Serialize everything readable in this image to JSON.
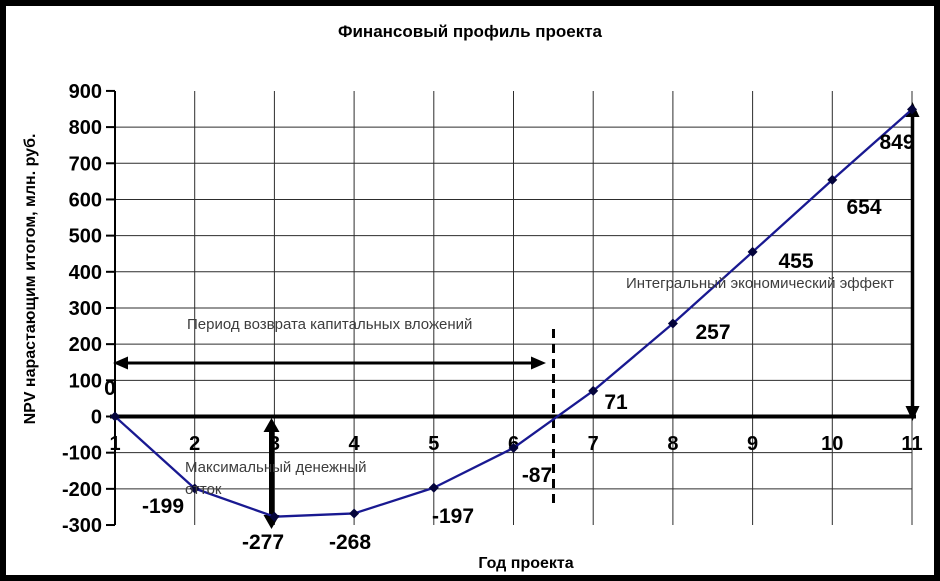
{
  "chart_data": {
    "type": "line",
    "title": "Финансовый профиль проекта",
    "xlabel": "Год проекта",
    "ylabel": "NPV нарастающим итогом, млн. руб.",
    "x": [
      1,
      2,
      3,
      4,
      5,
      6,
      7,
      8,
      9,
      10,
      11
    ],
    "values": [
      0,
      -199,
      -277,
      -268,
      -197,
      -87,
      71,
      257,
      455,
      654,
      849
    ],
    "data_labels": [
      "0",
      "-199",
      "-277",
      "-268",
      "-197",
      "-87",
      "71",
      "257",
      "455",
      "654",
      "849"
    ],
    "y_ticks": [
      900,
      800,
      700,
      600,
      500,
      400,
      300,
      200,
      100,
      0,
      -100,
      -200,
      -300
    ],
    "ylim": [
      -300,
      900
    ],
    "xlim": [
      1,
      11
    ],
    "ytick_step": 100,
    "grid": true,
    "legend": false,
    "line_color": "#191991",
    "marker_color": "#04043a",
    "marker": "diamond",
    "annotations": {
      "payback_period": "Период возврата капитальных вложений",
      "max_cash_outflow": "Максимальный денежный отток",
      "integral_effect": "Интегральный экономический эффект"
    }
  }
}
